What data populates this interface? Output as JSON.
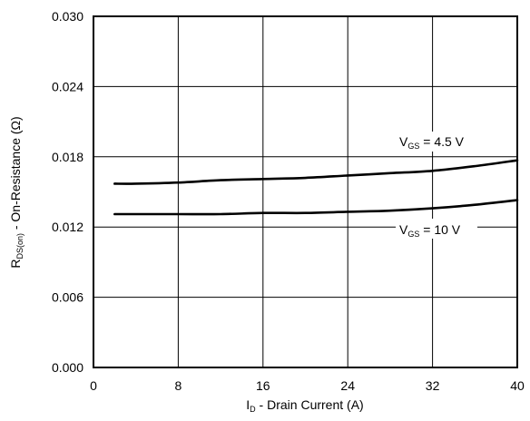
{
  "chart_data": {
    "type": "line",
    "title": "",
    "xlabel": {
      "main": "I",
      "sub": "D",
      "rest": " - Drain Current (A)"
    },
    "ylabel": {
      "main": "R",
      "sub": "DS(on)",
      "rest": " - On-Resistance (Ω)"
    },
    "xlim": [
      0,
      40
    ],
    "ylim": [
      0,
      0.03
    ],
    "x_ticks": [
      0,
      8,
      16,
      24,
      32,
      40
    ],
    "y_ticks": [
      0.0,
      0.006,
      0.012,
      0.018,
      0.024,
      0.03
    ],
    "x_tick_labels": [
      "0",
      "8",
      "16",
      "24",
      "32",
      "40"
    ],
    "y_tick_labels": [
      "0.000",
      "0.006",
      "0.012",
      "0.018",
      "0.024",
      "0.030"
    ],
    "grid": true,
    "series": [
      {
        "name": {
          "main": "V",
          "sub": "GS",
          "rest": " = 4.5 V"
        },
        "x": [
          2,
          4,
          8,
          12,
          16,
          20,
          24,
          28,
          32,
          36,
          40
        ],
        "y": [
          0.0157,
          0.0157,
          0.0158,
          0.016,
          0.0161,
          0.0162,
          0.0164,
          0.0166,
          0.0168,
          0.0172,
          0.0177
        ]
      },
      {
        "name": {
          "main": "V",
          "sub": "GS",
          "rest": " = 10 V"
        },
        "x": [
          2,
          4,
          8,
          12,
          16,
          20,
          24,
          28,
          32,
          36,
          40
        ],
        "y": [
          0.0131,
          0.0131,
          0.0131,
          0.0131,
          0.0132,
          0.0132,
          0.0133,
          0.0134,
          0.0136,
          0.0139,
          0.0143
        ]
      }
    ]
  }
}
